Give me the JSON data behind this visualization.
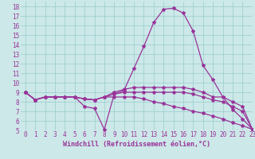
{
  "xlabel": "Windchill (Refroidissement éolien,°C)",
  "xlim": [
    -0.5,
    23
  ],
  "ylim": [
    5,
    18.5
  ],
  "xticks": [
    0,
    1,
    2,
    3,
    4,
    5,
    6,
    7,
    8,
    9,
    10,
    11,
    12,
    13,
    14,
    15,
    16,
    17,
    18,
    19,
    20,
    21,
    22,
    23
  ],
  "yticks": [
    5,
    6,
    7,
    8,
    9,
    10,
    11,
    12,
    13,
    14,
    15,
    16,
    17,
    18
  ],
  "background_color": "#cce8e8",
  "grid_color": "#99cccc",
  "line_color": "#993399",
  "line_width": 0.9,
  "marker": "*",
  "marker_size": 3,
  "lines": [
    {
      "x": [
        0,
        1,
        2,
        3,
        4,
        5,
        6,
        7,
        8,
        9,
        10,
        11,
        12,
        13,
        14,
        15,
        16,
        17,
        18,
        19,
        20,
        21,
        22,
        23
      ],
      "y": [
        9.0,
        8.2,
        8.5,
        8.5,
        8.5,
        8.5,
        7.5,
        7.3,
        5.1,
        8.8,
        9.2,
        11.5,
        13.8,
        16.3,
        17.7,
        17.8,
        17.3,
        15.4,
        11.8,
        10.3,
        8.5,
        7.2,
        6.2,
        5.1
      ]
    },
    {
      "x": [
        0,
        1,
        2,
        3,
        4,
        5,
        6,
        7,
        8,
        9,
        10,
        11,
        12,
        13,
        14,
        15,
        16,
        17,
        18,
        19,
        20,
        21,
        22,
        23
      ],
      "y": [
        9.0,
        8.2,
        8.5,
        8.5,
        8.5,
        8.5,
        8.3,
        8.2,
        8.5,
        9.0,
        9.3,
        9.5,
        9.5,
        9.5,
        9.5,
        9.5,
        9.5,
        9.3,
        9.0,
        8.5,
        8.5,
        8.0,
        7.5,
        5.1
      ]
    },
    {
      "x": [
        0,
        1,
        2,
        3,
        4,
        5,
        6,
        7,
        8,
        9,
        10,
        11,
        12,
        13,
        14,
        15,
        16,
        17,
        18,
        19,
        20,
        21,
        22,
        23
      ],
      "y": [
        9.0,
        8.2,
        8.5,
        8.5,
        8.5,
        8.5,
        8.3,
        8.2,
        8.5,
        8.8,
        9.0,
        9.0,
        9.0,
        9.0,
        9.0,
        9.0,
        9.0,
        8.8,
        8.5,
        8.2,
        8.0,
        7.5,
        7.0,
        5.1
      ]
    },
    {
      "x": [
        0,
        1,
        2,
        3,
        4,
        5,
        6,
        7,
        8,
        9,
        10,
        11,
        12,
        13,
        14,
        15,
        16,
        17,
        18,
        19,
        20,
        21,
        22,
        23
      ],
      "y": [
        9.0,
        8.2,
        8.5,
        8.5,
        8.5,
        8.5,
        8.3,
        8.2,
        8.5,
        8.5,
        8.5,
        8.5,
        8.3,
        8.0,
        7.8,
        7.5,
        7.3,
        7.0,
        6.8,
        6.5,
        6.2,
        5.8,
        5.5,
        5.1
      ]
    }
  ],
  "fontsize_xlabel": 6,
  "tick_fontsize": 5.5
}
